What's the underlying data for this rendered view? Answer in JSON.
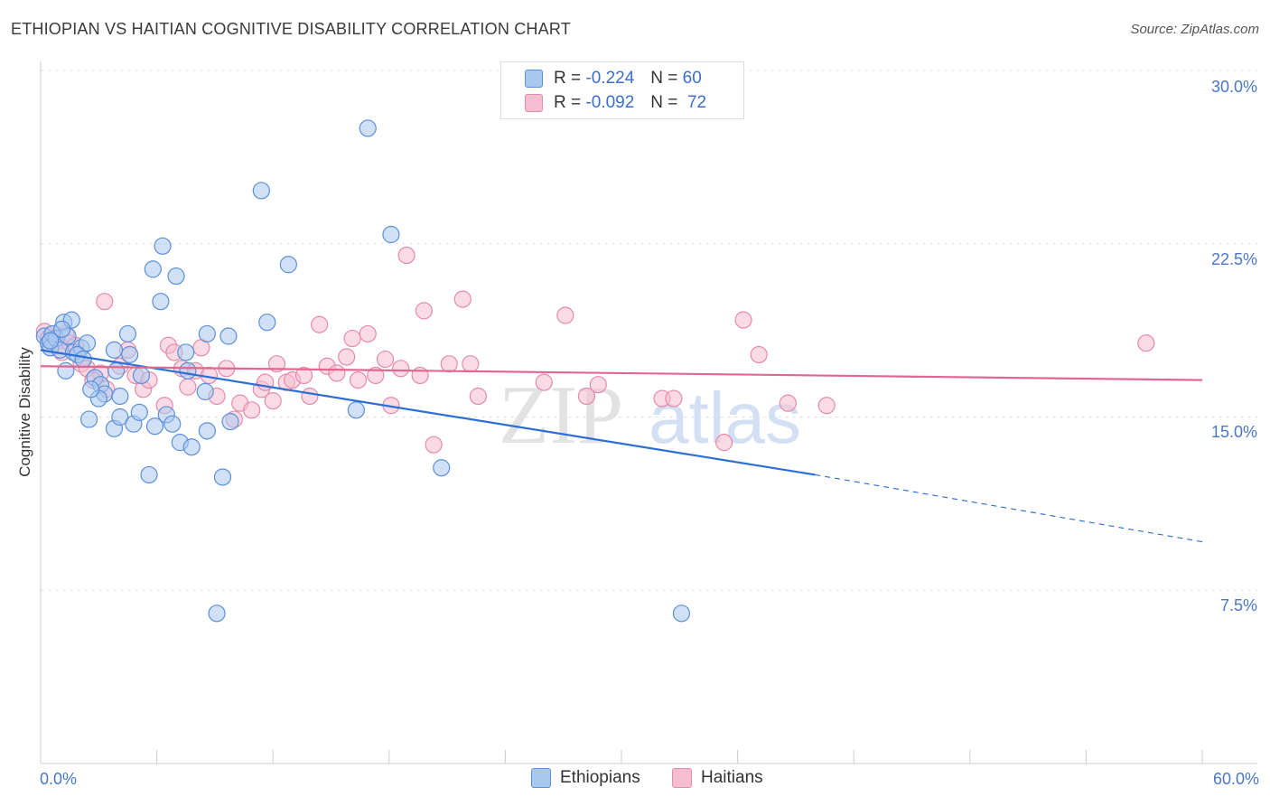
{
  "header": {
    "title": "ETHIOPIAN VS HAITIAN COGNITIVE DISABILITY CORRELATION CHART",
    "source": "Source: ZipAtlas.com"
  },
  "watermark": {
    "zip": "ZIP",
    "atlas": "atlas"
  },
  "legend_top": {
    "row1": {
      "r_label": "R =",
      "r_value": "-0.224",
      "n_label": "N =",
      "n_value": "60"
    },
    "row2": {
      "r_label": "R =",
      "r_value": "-0.092",
      "n_label": "N =",
      "n_value": "72"
    }
  },
  "legend_bottom": {
    "series1": "Ethiopians",
    "series2": "Haitians"
  },
  "colors": {
    "ethiopians_fill": "#a9c8f0",
    "ethiopians_stroke": "#5b8fd8",
    "ethiopians_line": "#2a6fd6",
    "haitians_fill": "#f6bdd0",
    "haitians_stroke": "#e58aa9",
    "haitians_line": "#e2678f",
    "tick_text": "#4a78c4",
    "grid": "#e3e3e3"
  },
  "chart_data": {
    "type": "scatter",
    "title": "ETHIOPIAN VS HAITIAN COGNITIVE DISABILITY CORRELATION CHART",
    "xlabel": "",
    "ylabel": "Cognitive Disability",
    "xlim": [
      0,
      60
    ],
    "ylim": [
      0,
      32
    ],
    "x_tick_labels": [
      "0.0%",
      "60.0%"
    ],
    "y_ticks": [
      7.5,
      15.0,
      22.5,
      30.0
    ],
    "y_tick_labels": [
      "7.5%",
      "15.0%",
      "22.5%",
      "30.0%"
    ],
    "grid": true,
    "legend_position": "top-center",
    "series": [
      {
        "name": "Ethiopians",
        "r": -0.224,
        "n": 60,
        "trend": {
          "x0": 0,
          "y0": 17.9,
          "x1": 40,
          "y1": 12.5,
          "dashed_to_x": 60,
          "dashed_to_y": 9.6
        },
        "points": [
          [
            0.2,
            18.5
          ],
          [
            0.4,
            18.2
          ],
          [
            0.5,
            18.0
          ],
          [
            0.6,
            18.6
          ],
          [
            0.8,
            18.4
          ],
          [
            1.0,
            17.9
          ],
          [
            1.2,
            19.1
          ],
          [
            1.4,
            18.5
          ],
          [
            1.6,
            19.2
          ],
          [
            1.7,
            17.8
          ],
          [
            2.1,
            18.0
          ],
          [
            2.4,
            18.2
          ],
          [
            1.9,
            17.7
          ],
          [
            2.2,
            17.5
          ],
          [
            1.3,
            17.0
          ],
          [
            2.8,
            16.7
          ],
          [
            3.1,
            16.4
          ],
          [
            3.3,
            16.0
          ],
          [
            3.8,
            17.9
          ],
          [
            4.6,
            17.7
          ],
          [
            5.2,
            16.8
          ],
          [
            4.1,
            15.9
          ],
          [
            3.0,
            15.8
          ],
          [
            2.5,
            14.9
          ],
          [
            3.8,
            14.5
          ],
          [
            4.1,
            15.0
          ],
          [
            4.8,
            14.7
          ],
          [
            5.1,
            15.2
          ],
          [
            5.9,
            14.6
          ],
          [
            5.6,
            12.5
          ],
          [
            6.5,
            15.1
          ],
          [
            6.8,
            14.7
          ],
          [
            7.2,
            13.9
          ],
          [
            7.8,
            13.7
          ],
          [
            8.6,
            14.4
          ],
          [
            9.4,
            12.4
          ],
          [
            9.8,
            14.8
          ],
          [
            7.5,
            17.8
          ],
          [
            7.6,
            17.0
          ],
          [
            8.5,
            16.1
          ],
          [
            8.6,
            18.6
          ],
          [
            9.7,
            18.5
          ],
          [
            5.8,
            21.4
          ],
          [
            6.2,
            20.0
          ],
          [
            6.3,
            22.4
          ],
          [
            7.0,
            21.1
          ],
          [
            11.7,
            19.1
          ],
          [
            12.8,
            21.6
          ],
          [
            11.4,
            24.8
          ],
          [
            16.3,
            15.3
          ],
          [
            16.9,
            27.5
          ],
          [
            18.1,
            22.9
          ],
          [
            20.7,
            12.8
          ],
          [
            9.1,
            6.5
          ],
          [
            33.1,
            6.5
          ],
          [
            0.5,
            18.3
          ],
          [
            1.1,
            18.8
          ],
          [
            4.5,
            18.6
          ],
          [
            3.9,
            17.0
          ],
          [
            2.6,
            16.2
          ]
        ]
      },
      {
        "name": "Haitians",
        "r": -0.092,
        "n": 72,
        "trend": {
          "x0": 0,
          "y0": 17.2,
          "x1": 60,
          "y1": 16.6
        },
        "points": [
          [
            0.2,
            18.7
          ],
          [
            0.4,
            18.4
          ],
          [
            0.5,
            18.0
          ],
          [
            0.7,
            18.6
          ],
          [
            0.9,
            18.3
          ],
          [
            1.1,
            17.8
          ],
          [
            1.3,
            18.6
          ],
          [
            1.5,
            18.2
          ],
          [
            1.8,
            18.1
          ],
          [
            2.1,
            17.3
          ],
          [
            2.4,
            17.1
          ],
          [
            3.1,
            16.9
          ],
          [
            2.7,
            16.6
          ],
          [
            3.4,
            16.2
          ],
          [
            3.3,
            20.0
          ],
          [
            4.1,
            17.2
          ],
          [
            4.5,
            17.9
          ],
          [
            4.9,
            16.8
          ],
          [
            5.3,
            16.2
          ],
          [
            5.6,
            16.6
          ],
          [
            6.4,
            15.5
          ],
          [
            6.6,
            18.1
          ],
          [
            6.9,
            17.8
          ],
          [
            7.3,
            17.1
          ],
          [
            7.6,
            16.3
          ],
          [
            8.0,
            17.0
          ],
          [
            8.3,
            18.0
          ],
          [
            8.7,
            16.8
          ],
          [
            9.1,
            15.9
          ],
          [
            9.6,
            17.1
          ],
          [
            10.0,
            14.9
          ],
          [
            10.3,
            15.6
          ],
          [
            10.9,
            15.3
          ],
          [
            11.4,
            16.2
          ],
          [
            11.6,
            16.5
          ],
          [
            12.0,
            15.7
          ],
          [
            12.2,
            17.3
          ],
          [
            12.7,
            16.5
          ],
          [
            13.0,
            16.6
          ],
          [
            13.6,
            16.8
          ],
          [
            13.9,
            15.9
          ],
          [
            14.4,
            19.0
          ],
          [
            14.8,
            17.2
          ],
          [
            15.3,
            16.9
          ],
          [
            15.8,
            17.6
          ],
          [
            16.1,
            18.4
          ],
          [
            16.4,
            16.6
          ],
          [
            16.9,
            18.6
          ],
          [
            17.3,
            16.8
          ],
          [
            17.8,
            17.5
          ],
          [
            18.1,
            15.5
          ],
          [
            18.6,
            17.1
          ],
          [
            18.9,
            22.0
          ],
          [
            19.6,
            16.8
          ],
          [
            19.8,
            19.6
          ],
          [
            20.3,
            13.8
          ],
          [
            21.1,
            17.3
          ],
          [
            21.8,
            20.1
          ],
          [
            22.2,
            17.3
          ],
          [
            22.6,
            15.9
          ],
          [
            26.0,
            16.5
          ],
          [
            27.1,
            19.4
          ],
          [
            28.2,
            15.9
          ],
          [
            28.8,
            16.4
          ],
          [
            32.1,
            15.8
          ],
          [
            32.7,
            15.8
          ],
          [
            35.3,
            13.9
          ],
          [
            36.3,
            19.2
          ],
          [
            37.1,
            17.7
          ],
          [
            38.6,
            15.6
          ],
          [
            40.6,
            15.5
          ],
          [
            57.1,
            18.2
          ]
        ]
      }
    ]
  }
}
